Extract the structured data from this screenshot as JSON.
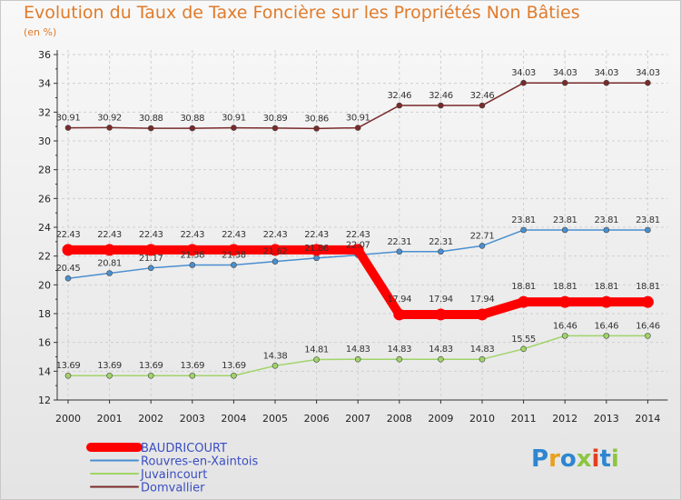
{
  "header": {
    "title": "Evolution du Taux de Taxe Foncière sur les Propriétés Non Bâties",
    "unit": "(en %)"
  },
  "logo": {
    "letters": [
      "P",
      "r",
      "o",
      "x",
      "i",
      "t",
      "i"
    ],
    "colors": [
      "#2e86d0",
      "#e8a020",
      "#2e86d0",
      "#8cc63f",
      "#e04020",
      "#2e86d0",
      "#8cc63f"
    ]
  },
  "chart_data": {
    "type": "line",
    "title": "Evolution du Taux de Taxe Foncière sur les Propriétés Non Bâties",
    "ylabel": "(en %)",
    "xlabel": "",
    "x": [
      "2000",
      "2001",
      "2002",
      "2003",
      "2004",
      "2005",
      "2006",
      "2007",
      "2008",
      "2009",
      "2010",
      "2011",
      "2012",
      "2013",
      "2014"
    ],
    "ylim": [
      12,
      36
    ],
    "yticks": [
      12,
      14,
      16,
      18,
      20,
      22,
      24,
      26,
      28,
      30,
      32,
      34,
      36
    ],
    "grid": true,
    "legend_position": "bottom-left",
    "series": [
      {
        "name": "BAUDRICOURT",
        "color": "#ff0000",
        "width": "thick",
        "values": [
          22.43,
          22.43,
          22.43,
          22.43,
          22.43,
          22.43,
          22.43,
          22.43,
          17.94,
          17.94,
          17.94,
          18.81,
          18.81,
          18.81,
          18.81
        ],
        "labels": [
          "22.43",
          "22.43",
          "22.43",
          "22.43",
          "22.43",
          "22.43",
          "22.43",
          "22.43",
          "17.94",
          "17.94",
          "17.94",
          "18.81",
          "18.81",
          "18.81",
          "18.81"
        ]
      },
      {
        "name": "Rouvres-en-Xaintois",
        "color": "#4a8fd0",
        "width": "thin",
        "values": [
          20.45,
          20.81,
          21.17,
          21.38,
          21.38,
          21.62,
          21.86,
          22.07,
          22.31,
          22.31,
          22.71,
          23.81,
          23.81,
          23.81,
          23.81
        ],
        "labels": [
          "20.45",
          "20.81",
          "21.17",
          "21.38",
          "21.38",
          "21.62",
          "21.86",
          "22.07",
          "22.31",
          "22.31",
          "22.71",
          "23.81",
          "23.81",
          "23.81",
          "23.81"
        ]
      },
      {
        "name": "Juvaincourt",
        "color": "#a0d468",
        "width": "thin",
        "values": [
          13.69,
          13.69,
          13.69,
          13.69,
          13.69,
          14.38,
          14.81,
          14.83,
          14.83,
          14.83,
          14.83,
          15.55,
          16.46,
          16.46,
          16.46
        ],
        "labels": [
          "13.69",
          "13.69",
          "13.69",
          "13.69",
          "13.69",
          "14.38",
          "14.81",
          "14.83",
          "14.83",
          "14.83",
          "14.83",
          "15.55",
          "16.46",
          "16.46",
          "16.46"
        ]
      },
      {
        "name": "Domvallier",
        "color": "#7a2a2a",
        "width": "thin",
        "values": [
          30.91,
          30.92,
          30.88,
          30.88,
          30.91,
          30.89,
          30.86,
          30.91,
          32.46,
          32.46,
          32.46,
          34.03,
          34.03,
          34.03,
          34.03
        ],
        "labels": [
          "30.91",
          "30.92",
          "30.88",
          "30.88",
          "30.91",
          "30.89",
          "30.86",
          "30.91",
          "32.46",
          "32.46",
          "32.46",
          "34.03",
          "34.03",
          "34.03",
          "34.03"
        ]
      }
    ]
  }
}
